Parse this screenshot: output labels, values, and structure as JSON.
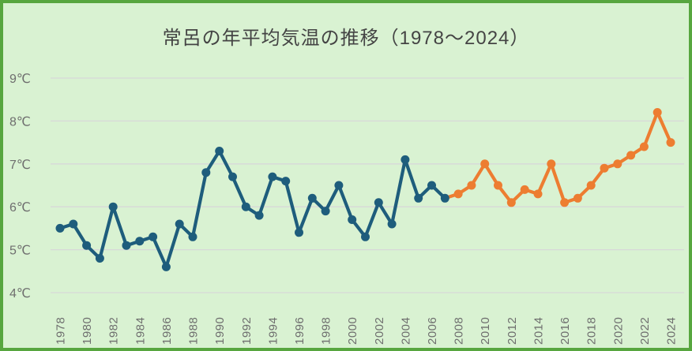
{
  "chart_data": {
    "type": "line",
    "title": "常呂の年平均気温の推移（1978～2024）",
    "xlabel": "",
    "ylabel": "",
    "y_unit": "℃",
    "ylim": [
      4,
      9
    ],
    "y_ticks": [
      9,
      8,
      7,
      6,
      5,
      4
    ],
    "x_tick_step": 2,
    "x_tick_years": [
      1978,
      1980,
      1982,
      1984,
      1986,
      1988,
      1990,
      1992,
      1994,
      1996,
      1998,
      2000,
      2002,
      2004,
      2006,
      2008,
      2010,
      2012,
      2014,
      2016,
      2018,
      2020,
      2022,
      2024
    ],
    "grid": "horizontal-only",
    "legend_position": "none",
    "years": [
      1978,
      1979,
      1980,
      1981,
      1982,
      1983,
      1984,
      1985,
      1986,
      1987,
      1988,
      1989,
      1990,
      1991,
      1992,
      1993,
      1994,
      1995,
      1996,
      1997,
      1998,
      1999,
      2000,
      2001,
      2002,
      2003,
      2004,
      2005,
      2006,
      2007,
      2008,
      2009,
      2010,
      2011,
      2012,
      2013,
      2014,
      2015,
      2016,
      2017,
      2018,
      2019,
      2020,
      2021,
      2022,
      2023,
      2024
    ],
    "values": [
      5.5,
      5.6,
      5.1,
      4.8,
      6.0,
      5.1,
      5.2,
      5.3,
      4.6,
      5.6,
      5.3,
      6.8,
      7.3,
      6.7,
      6.0,
      5.8,
      6.7,
      6.6,
      5.4,
      6.2,
      5.9,
      6.5,
      5.7,
      5.3,
      6.1,
      5.6,
      7.1,
      6.2,
      6.5,
      6.2,
      6.3,
      6.5,
      7.0,
      6.5,
      6.1,
      6.4,
      6.3,
      7.0,
      6.1,
      6.2,
      6.5,
      6.9,
      7.0,
      7.2,
      7.4,
      8.2,
      7.5
    ],
    "segments": [
      {
        "id": "early-period",
        "color": "#1E5D7C",
        "from_year": 1978,
        "to_year": 2007,
        "markers_from_year": 1978
      },
      {
        "id": "recent-period",
        "color": "#ED7D31",
        "from_year": 2007,
        "to_year": 2024,
        "markers_from_year": 2008
      }
    ]
  },
  "style": {
    "background": "#D9F2D2",
    "border_color": "#57A63F",
    "gridline_color": "#D8D8D8",
    "axis_label_color": "#6E6E6E",
    "title_color": "#444444",
    "line_width": 4.2,
    "marker_radius": 5.5
  }
}
